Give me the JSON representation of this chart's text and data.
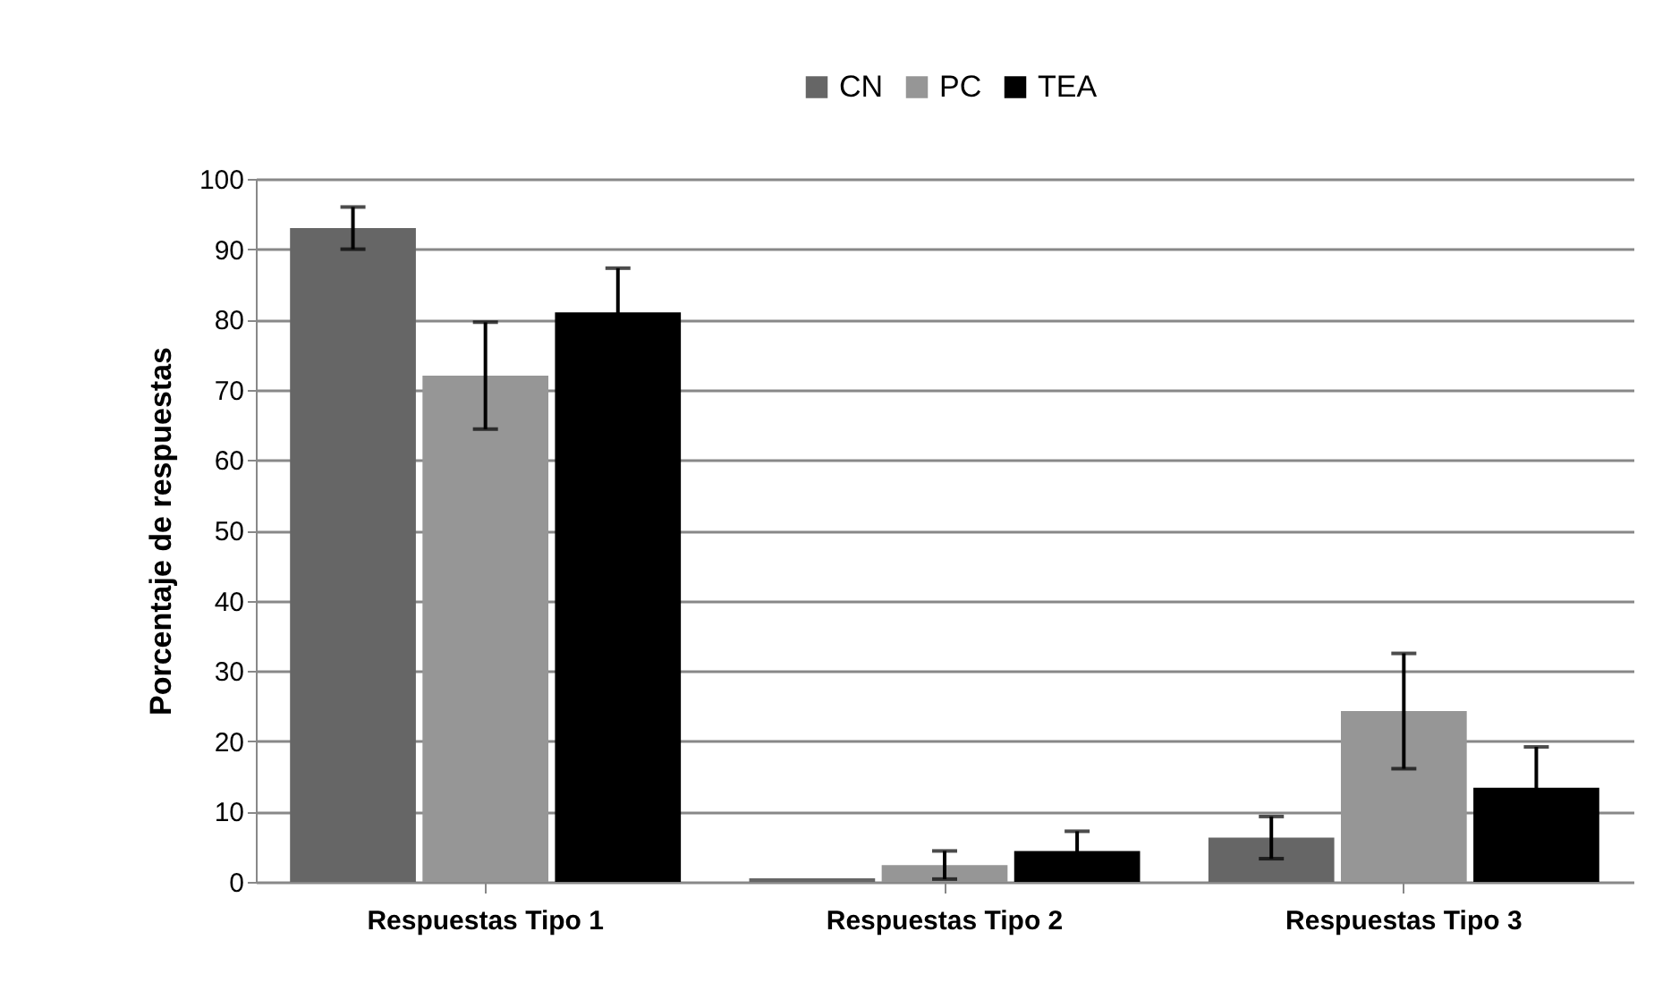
{
  "chart_data": {
    "type": "bar",
    "ylabel": "Porcentaje de respuestas",
    "categories": [
      "Respuestas  Tipo 1",
      "Respuestas  Tipo 2",
      "Respuestas  Tipo 3"
    ],
    "series": [
      {
        "name": "CN",
        "color": "#666666",
        "values": [
          93,
          0.5,
          6.3
        ],
        "errors": [
          3,
          null,
          3
        ]
      },
      {
        "name": "PC",
        "color": "#969696",
        "values": [
          72,
          2.4,
          24.3
        ],
        "errors": [
          7.6,
          2,
          8.2
        ]
      },
      {
        "name": "TEA",
        "color": "#000000",
        "values": [
          81,
          4.4,
          13.4
        ],
        "errors": [
          6.3,
          2.8,
          5.8
        ]
      }
    ],
    "ylim": [
      0,
      100
    ],
    "yticks": [
      0,
      10,
      20,
      30,
      40,
      50,
      60,
      70,
      80,
      90,
      100
    ],
    "grid": "y",
    "legend": "top"
  }
}
